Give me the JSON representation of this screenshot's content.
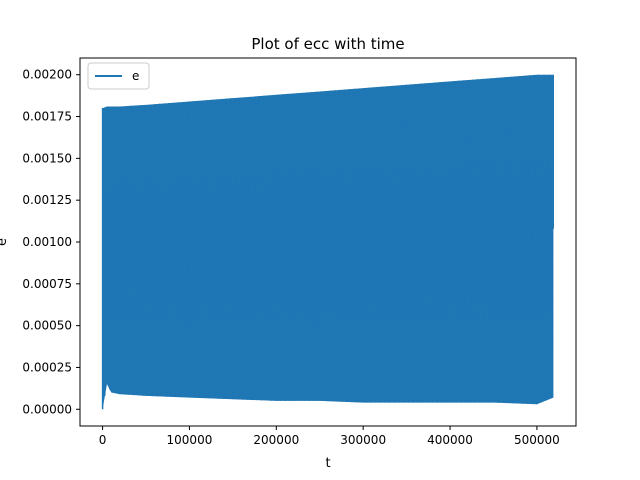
{
  "chart_data": {
    "type": "line",
    "title": "Plot of ecc with time",
    "xlabel": "t",
    "ylabel": "e",
    "xlim": [
      -26000,
      545000
    ],
    "ylim": [
      -0.0001,
      0.0021
    ],
    "xticks": [
      0,
      100000,
      200000,
      300000,
      400000,
      500000
    ],
    "xtick_labels": [
      "0",
      "100000",
      "200000",
      "300000",
      "400000",
      "500000"
    ],
    "yticks": [
      0.0,
      0.00025,
      0.0005,
      0.00075,
      0.001,
      0.00125,
      0.0015,
      0.00175,
      0.002
    ],
    "ytick_labels": [
      "0.00000",
      "0.00025",
      "0.00050",
      "0.00075",
      "0.00100",
      "0.00125",
      "0.00150",
      "0.00175",
      "0.00200"
    ],
    "grid": false,
    "legend_position": "top-left",
    "series": [
      {
        "name": "e",
        "color": "#1f77b4",
        "x": [
          0,
          5000,
          10000,
          20000,
          50000,
          100000,
          150000,
          200000,
          250000,
          300000,
          350000,
          400000,
          450000,
          500000,
          519000
        ],
        "upper": [
          0.0018,
          0.00181,
          0.00181,
          0.00181,
          0.00182,
          0.00184,
          0.00186,
          0.00188,
          0.0019,
          0.00192,
          0.00194,
          0.00196,
          0.00198,
          0.002,
          0.002
        ],
        "lower": [
          0.0,
          0.00015,
          0.0001,
          9e-05,
          8e-05,
          7e-05,
          6e-05,
          5e-05,
          5e-05,
          4e-05,
          4e-05,
          4e-05,
          4e-05,
          3e-05,
          7e-05
        ],
        "final_value": 0.00108
      }
    ]
  }
}
